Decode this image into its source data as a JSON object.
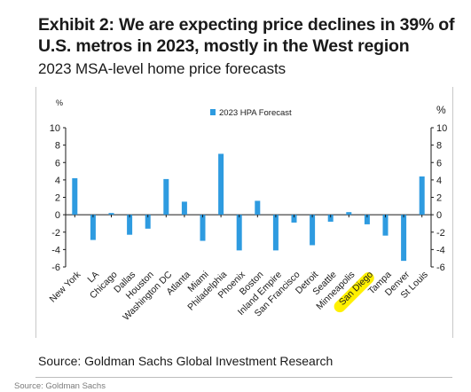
{
  "header": {
    "title": "Exhibit 2: We are expecting price declines in 39% of U.S. metros in 2023, mostly in the West region",
    "subtitle": "2023 MSA-level home price forecasts"
  },
  "source_text": "Source: Goldman Sachs Global Investment Research",
  "footnote": "Source: Goldman Sachs",
  "colors": {
    "bar": "#2e9be0",
    "highlight": "#fff000"
  },
  "chart_data": {
    "type": "bar",
    "title": "",
    "xlabel": "",
    "ylabel": "%",
    "ylabel_right": "%",
    "ylim": [
      -6,
      10
    ],
    "yticks": [
      -6,
      -4,
      -2,
      0,
      2,
      4,
      6,
      8,
      10
    ],
    "grid": false,
    "legend_position": "top-center",
    "categories": [
      "New York",
      "LA",
      "Chicago",
      "Dallas",
      "Houston",
      "Washington DC",
      "Atlanta",
      "Miami",
      "Philadelphia",
      "Phoenix",
      "Boston",
      "Inland Empire",
      "San Francisco",
      "Detroit",
      "Seattle",
      "Minneapolis",
      "San Diego",
      "Tampa",
      "Denver",
      "St Louis"
    ],
    "highlighted_category": "San Diego",
    "series": [
      {
        "name": "2023 HPA Forecast",
        "values": [
          4.2,
          -2.9,
          0.2,
          -2.3,
          -1.6,
          4.1,
          1.5,
          -3.0,
          7.0,
          -4.1,
          1.6,
          -4.1,
          -0.9,
          -3.5,
          -0.8,
          0.3,
          -1.1,
          -2.4,
          -5.3,
          4.4
        ]
      }
    ]
  }
}
